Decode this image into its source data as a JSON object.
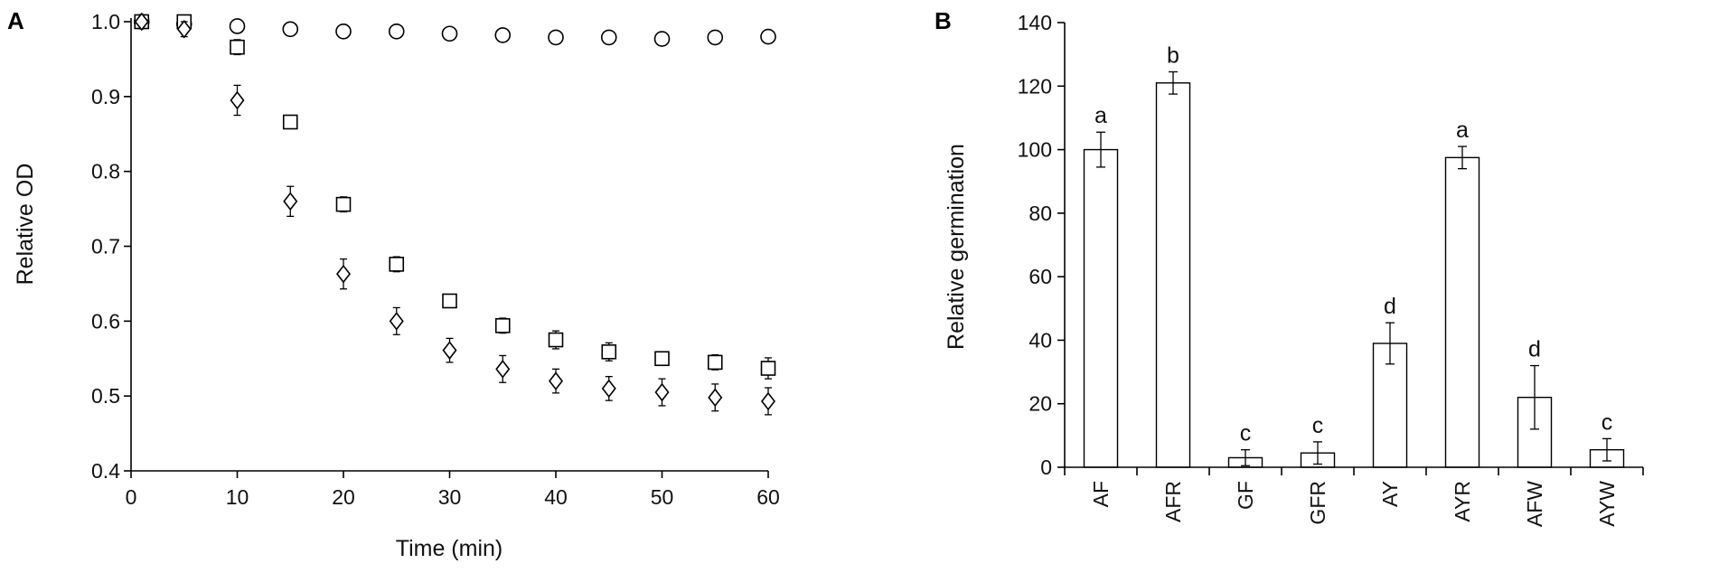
{
  "chart_data": [
    {
      "panel": "A",
      "type": "scatter",
      "xlabel": "Time (min)",
      "ylabel": "Relative OD",
      "xlim": [
        0,
        60
      ],
      "ylim": [
        0.4,
        1.0
      ],
      "xticks": [
        0,
        10,
        20,
        30,
        40,
        50,
        60
      ],
      "yticks": [
        0.4,
        0.5,
        0.6,
        0.7,
        0.8,
        0.9,
        1.0
      ],
      "yticklabels": [
        "0.4",
        "0.5",
        "0.6",
        "0.7",
        "0.8",
        "0.9",
        "1.0"
      ],
      "grid": false,
      "series": [
        {
          "marker": "circle",
          "x": [
            1,
            5,
            10,
            15,
            20,
            25,
            30,
            35,
            40,
            45,
            50,
            55,
            60
          ],
          "y": [
            1.0,
            0.997,
            0.994,
            0.99,
            0.987,
            0.987,
            0.984,
            0.982,
            0.979,
            0.979,
            0.977,
            0.979,
            0.98
          ],
          "err": [
            0.002,
            0.002,
            0.002,
            0.002,
            0.002,
            0.002,
            0.002,
            0.002,
            0.002,
            0.002,
            0.002,
            0.002,
            0.002
          ]
        },
        {
          "marker": "square",
          "x": [
            1,
            5,
            10,
            15,
            20,
            25,
            30,
            35,
            40,
            45,
            50,
            55,
            60
          ],
          "y": [
            1.0,
            1.0,
            0.966,
            0.866,
            0.756,
            0.676,
            0.627,
            0.594,
            0.575,
            0.559,
            0.55,
            0.545,
            0.537
          ],
          "err": [
            0.003,
            0.003,
            0.01,
            0.005,
            0.01,
            0.01,
            0.006,
            0.01,
            0.012,
            0.012,
            0.008,
            0.01,
            0.014
          ]
        },
        {
          "marker": "diamond",
          "x": [
            1,
            5,
            10,
            15,
            20,
            25,
            30,
            35,
            40,
            45,
            50,
            55,
            60
          ],
          "y": [
            1.0,
            0.99,
            0.895,
            0.76,
            0.663,
            0.6,
            0.561,
            0.536,
            0.52,
            0.51,
            0.505,
            0.498,
            0.493
          ],
          "err": [
            0.003,
            0.01,
            0.02,
            0.02,
            0.02,
            0.018,
            0.016,
            0.018,
            0.016,
            0.016,
            0.018,
            0.018,
            0.018
          ]
        }
      ]
    },
    {
      "panel": "B",
      "type": "bar",
      "xlabel": "",
      "ylabel": "Relative germination",
      "ylim": [
        0,
        140
      ],
      "yticks": [
        0,
        20,
        40,
        60,
        80,
        100,
        120,
        140
      ],
      "grid": false,
      "categories": [
        "AF",
        "AFR",
        "GF",
        "GFR",
        "AY",
        "AYR",
        "AFW",
        "AYW"
      ],
      "values": [
        100,
        121,
        3,
        4.5,
        39,
        97.5,
        22,
        5.5
      ],
      "errors": [
        5.5,
        3.5,
        2.5,
        3.5,
        6.5,
        3.5,
        10,
        3.5
      ],
      "significance_letters": [
        "a",
        "b",
        "c",
        "c",
        "d",
        "a",
        "d",
        "c"
      ]
    }
  ]
}
